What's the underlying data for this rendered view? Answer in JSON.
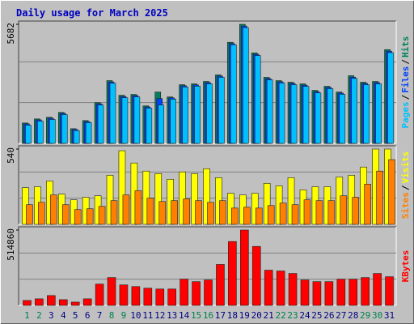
{
  "chart_data": {
    "type": "bar",
    "title": "Daily usage for March 2025",
    "categories": [
      "1",
      "2",
      "3",
      "4",
      "5",
      "6",
      "7",
      "8",
      "9",
      "10",
      "11",
      "12",
      "13",
      "14",
      "15",
      "16",
      "17",
      "18",
      "19",
      "20",
      "21",
      "22",
      "23",
      "24",
      "25",
      "26",
      "27",
      "28",
      "29",
      "30",
      "31"
    ],
    "highlight_categories": [
      0,
      1,
      7,
      8,
      14,
      15,
      21,
      22,
      28,
      29
    ],
    "highlight_color": "#00804c",
    "legend_separator": "/",
    "panels": [
      {
        "ylim": [
          0,
          5682
        ],
        "yticks": [
          5682
        ],
        "series": [
          {
            "name": "Hits",
            "color": "#00805c",
            "values": [
              973,
              1167,
              1245,
              1478,
              700,
              1089,
              1945,
              2995,
              2295,
              2334,
              1789,
              2451,
              2217,
              2801,
              2840,
              2956,
              3268,
              4824,
              5682,
              4318,
              3151,
              2995,
              2918,
              2840,
              2529,
              2723,
              2451,
              3229,
              2918,
              2956,
              4474
            ]
          },
          {
            "name": "Files",
            "color": "#0040ff",
            "values": [
              930,
              1120,
              1200,
              1430,
              660,
              1040,
              1890,
              2930,
              2240,
              2280,
              1740,
              2140,
              2170,
              2750,
              2790,
              2900,
              3210,
              4760,
              5600,
              4250,
              3090,
              2940,
              2860,
              2780,
              2470,
              2670,
              2400,
              3160,
              2860,
              2900,
              4400
            ]
          },
          {
            "name": "Pages",
            "color": "#00c0ff",
            "values": [
              870,
              1060,
              1140,
              1370,
              610,
              990,
              1830,
              2870,
              2180,
              2220,
              1680,
              1830,
              2110,
              2690,
              2730,
              2840,
              3150,
              4700,
              5520,
              4190,
              3030,
              2880,
              2800,
              2720,
              2410,
              2610,
              2340,
              3100,
              2800,
              2840,
              4330
            ]
          }
        ]
      },
      {
        "ylim": [
          0,
          540
        ],
        "yticks": [
          540
        ],
        "series": [
          {
            "name": "Visits",
            "color": "#ffff00",
            "values": [
              264,
              270,
              311,
              217,
              176,
              194,
              205,
              352,
              528,
              440,
              382,
              364,
              323,
              376,
              364,
              399,
              335,
              223,
              211,
              223,
              294,
              276,
              335,
              247,
              270,
              270,
              340,
              352,
              411,
              540,
              540
            ]
          },
          {
            "name": "Sites",
            "color": "#ff8000",
            "values": [
              141,
              158,
              211,
              141,
              106,
              112,
              129,
              170,
              211,
              241,
              188,
              164,
              170,
              182,
              170,
              158,
              170,
              117,
              123,
              117,
              135,
              153,
              141,
              176,
              170,
              170,
              205,
              194,
              288,
              382,
              464
            ]
          }
        ]
      },
      {
        "ylim": [
          0,
          514860
        ],
        "yticks": [
          514860
        ],
        "series": [
          {
            "name": "KBytes",
            "color": "#ff0000",
            "values": [
              33576,
              44768,
              67152,
              39172,
              22384,
              44768,
              145496,
              190264,
              139900,
              128708,
              117516,
              111920,
              111920,
              179072,
              162284,
              173476,
              279800,
              436488,
              514860,
              402912,
              240628,
              235032,
              218244,
              173476,
              162284,
              162284,
              179072,
              179072,
              190264,
              218244,
              195860
            ]
          }
        ]
      }
    ]
  }
}
